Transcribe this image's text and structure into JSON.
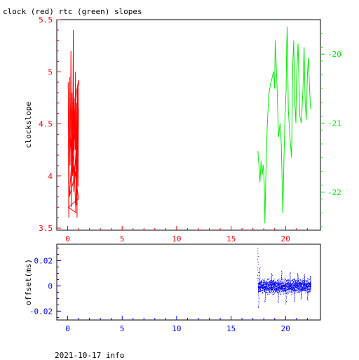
{
  "title": "clock (red) rtc (green) slopes",
  "footer": "2021-10-17 info",
  "colors": {
    "clock": "#ff0000",
    "rtc": "#00ee00",
    "offset": "#0000ff",
    "frame": "#000000"
  },
  "chart_data": [
    {
      "type": "line",
      "name": "clock-rtc-slopes",
      "title": "clock (red) rtc (green) slopes",
      "ylabel": "clockslope",
      "xlim": [
        -1,
        23.2
      ],
      "ylim": [
        3.48,
        5.5
      ],
      "y2lim": [
        -22.55,
        -19.5
      ],
      "x_ticks": [
        0,
        5,
        10,
        15,
        20
      ],
      "y_ticks": [
        3.5,
        4,
        4.5,
        5,
        5.5
      ],
      "y2_ticks": [
        -20,
        -21,
        -22
      ],
      "series": [
        {
          "name": "clock",
          "axis": "left",
          "points": [
            [
              0.05,
              4.9
            ],
            [
              0.1,
              3.6
            ],
            [
              0.18,
              4.95
            ],
            [
              0.22,
              4.1
            ],
            [
              0.3,
              5.2
            ],
            [
              0.35,
              3.7
            ],
            [
              0.4,
              4.8
            ],
            [
              0.45,
              4.0
            ],
            [
              0.52,
              5.4
            ],
            [
              0.55,
              3.85
            ],
            [
              0.6,
              4.75
            ],
            [
              0.68,
              4.25
            ],
            [
              0.72,
              5.0
            ],
            [
              0.78,
              3.72
            ],
            [
              0.82,
              4.7
            ],
            [
              0.86,
              3.6
            ],
            [
              0.9,
              4.85
            ],
            [
              0.95,
              3.9
            ],
            [
              1.0,
              4.92
            ],
            [
              0.8,
              4.8
            ],
            [
              0.3,
              4.02
            ],
            [
              0.6,
              4.5
            ],
            [
              0.15,
              3.8
            ],
            [
              0.9,
              4.1
            ],
            [
              0.4,
              4.6
            ],
            [
              0.75,
              3.65
            ],
            [
              0.05,
              3.7
            ],
            [
              1.0,
              3.78
            ],
            [
              0.2,
              4.4
            ],
            [
              0.6,
              3.95
            ],
            [
              0.98,
              4.65
            ]
          ]
        },
        {
          "name": "rtc",
          "axis": "right",
          "points": [
            [
              17.45,
              -21.4
            ],
            [
              17.55,
              -21.6
            ],
            [
              17.65,
              -21.85
            ],
            [
              17.75,
              -21.55
            ],
            [
              17.85,
              -21.75
            ],
            [
              17.95,
              -21.6
            ],
            [
              18.05,
              -21.9
            ],
            [
              18.1,
              -22.45
            ],
            [
              18.2,
              -21.7
            ],
            [
              18.3,
              -21.1
            ],
            [
              18.45,
              -20.6
            ],
            [
              18.6,
              -20.45
            ],
            [
              18.75,
              -20.35
            ],
            [
              18.9,
              -20.25
            ],
            [
              19.0,
              -20.5
            ],
            [
              19.05,
              -19.8
            ],
            [
              19.2,
              -20.4
            ],
            [
              19.35,
              -21.2
            ],
            [
              19.5,
              -21.0
            ],
            [
              19.6,
              -21.3
            ],
            [
              19.65,
              -21.6
            ],
            [
              19.75,
              -22.3
            ],
            [
              19.85,
              -21.5
            ],
            [
              19.95,
              -20.9
            ],
            [
              20.05,
              -20.5
            ],
            [
              20.1,
              -19.9
            ],
            [
              20.15,
              -19.6
            ],
            [
              20.25,
              -20.8
            ],
            [
              20.4,
              -21.2
            ],
            [
              20.55,
              -21.5
            ],
            [
              20.65,
              -20.2
            ],
            [
              20.75,
              -19.8
            ],
            [
              20.85,
              -20.7
            ],
            [
              20.95,
              -21.0
            ],
            [
              21.0,
              -20.4
            ],
            [
              21.15,
              -19.85
            ],
            [
              21.3,
              -20.9
            ],
            [
              21.45,
              -21.0
            ],
            [
              21.6,
              -20.5
            ],
            [
              21.7,
              -19.9
            ],
            [
              21.8,
              -20.7
            ],
            [
              21.9,
              -20.95
            ],
            [
              22.0,
              -20.3
            ],
            [
              22.1,
              -20.05
            ],
            [
              22.2,
              -20.5
            ],
            [
              22.3,
              -20.8
            ]
          ]
        }
      ]
    },
    {
      "type": "scatter",
      "name": "offset",
      "ylabel": "offset(ms)",
      "xlim": [
        -1,
        23.2
      ],
      "ylim": [
        -0.027,
        0.033
      ],
      "x_ticks": [
        0,
        5,
        10,
        15,
        20
      ],
      "y_ticks": [
        0.02,
        0,
        -0.02
      ],
      "y_tick_labels": [
        "0.02",
        "0",
        "-0.02"
      ],
      "series": [
        {
          "name": "offset",
          "x_range": [
            17.45,
            22.3
          ],
          "center": 0.0,
          "band": 0.003,
          "spikes": [
            [
              17.45,
              0.03
            ],
            [
              17.5,
              -0.017
            ],
            [
              17.6,
              0.015
            ],
            [
              18.1,
              -0.012
            ],
            [
              18.7,
              0.01
            ],
            [
              19.3,
              -0.013
            ],
            [
              19.6,
              0.012
            ],
            [
              20.0,
              -0.014
            ],
            [
              20.4,
              0.011
            ],
            [
              20.8,
              -0.012
            ],
            [
              21.1,
              0.01
            ],
            [
              21.4,
              -0.01
            ],
            [
              21.7,
              0.009
            ],
            [
              22.0,
              -0.011
            ],
            [
              22.25,
              0.008
            ]
          ]
        }
      ]
    }
  ]
}
